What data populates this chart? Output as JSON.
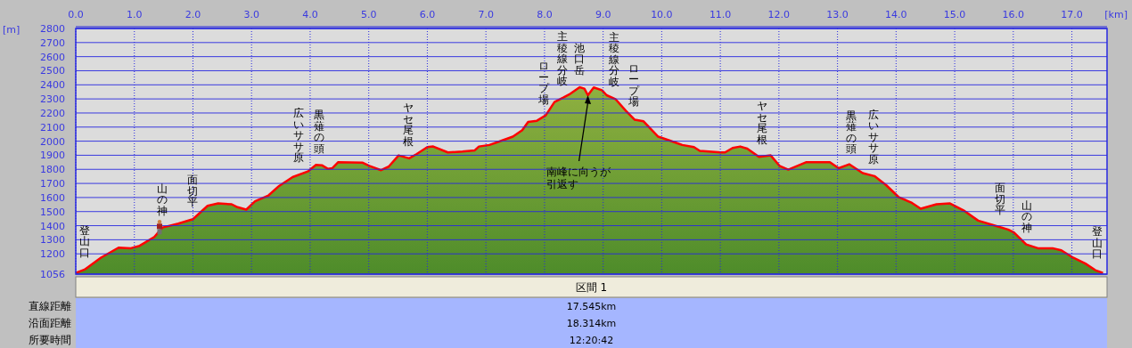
{
  "chart_data": {
    "type": "area",
    "xlabel": "[km]",
    "ylabel": "[m]",
    "xlim": [
      0,
      17.6
    ],
    "ylim": [
      1056,
      2800
    ],
    "xticks": [
      {
        "value": 0,
        "label": "0.0"
      },
      {
        "value": 1,
        "label": "1.0"
      },
      {
        "value": 2,
        "label": "2.0"
      },
      {
        "value": 3,
        "label": "3.0"
      },
      {
        "value": 4,
        "label": "4.0"
      },
      {
        "value": 5,
        "label": "5.0"
      },
      {
        "value": 6,
        "label": "6.0"
      },
      {
        "value": 7,
        "label": "7.0"
      },
      {
        "value": 8,
        "label": "8.0"
      },
      {
        "value": 9,
        "label": "9.0"
      },
      {
        "value": 10,
        "label": "10.0"
      },
      {
        "value": 11,
        "label": "11.0"
      },
      {
        "value": 12,
        "label": "12.0"
      },
      {
        "value": 13,
        "label": "13.0"
      },
      {
        "value": 14,
        "label": "14.0"
      },
      {
        "value": 15,
        "label": "15.0"
      },
      {
        "value": 16,
        "label": "16.0"
      },
      {
        "value": 17,
        "label": "17.0"
      }
    ],
    "yticks": [
      1056,
      1200,
      1300,
      1400,
      1500,
      1600,
      1700,
      1800,
      1900,
      2000,
      2100,
      2200,
      2300,
      2400,
      2500,
      2600,
      2700,
      2800
    ],
    "grid": true,
    "series": [
      {
        "color": "#ff0000",
        "x": [
          0,
          0.15,
          0.43,
          0.73,
          0.94,
          1.09,
          1.34,
          1.48,
          1.75,
          2.0,
          2.25,
          2.43,
          2.66,
          2.76,
          2.91,
          3.06,
          3.29,
          3.47,
          3.7,
          3.97,
          4.1,
          4.2,
          4.3,
          4.38,
          4.48,
          4.89,
          5.01,
          5.21,
          5.34,
          5.51,
          5.69,
          5.82,
          6.0,
          6.1,
          6.35,
          6.6,
          6.81,
          6.88,
          7.06,
          7.27,
          7.46,
          7.62,
          7.72,
          7.87,
          8.02,
          8.17,
          8.32,
          8.42,
          8.6,
          8.68,
          8.74,
          8.84,
          8.98,
          9.06,
          9.21,
          9.39,
          9.54,
          9.69,
          9.94,
          10.14,
          10.35,
          10.55,
          10.65,
          11.01,
          11.08,
          11.21,
          11.34,
          11.46,
          11.66,
          11.86,
          12.01,
          12.16,
          12.47,
          12.87,
          13.02,
          13.2,
          13.43,
          13.63,
          13.83,
          14.04,
          14.27,
          14.42,
          14.69,
          14.92,
          15.15,
          15.4,
          15.66,
          15.91,
          16.01,
          16.22,
          16.42,
          16.67,
          16.82,
          17.02,
          17.23,
          17.4,
          17.53
        ],
        "values": [
          1065,
          1088,
          1173,
          1244,
          1240,
          1257,
          1320,
          1387,
          1415,
          1446,
          1541,
          1558,
          1552,
          1531,
          1514,
          1573,
          1615,
          1682,
          1745,
          1787,
          1832,
          1829,
          1804,
          1808,
          1851,
          1848,
          1825,
          1794,
          1819,
          1899,
          1878,
          1909,
          1958,
          1962,
          1920,
          1926,
          1935,
          1962,
          1973,
          2004,
          2032,
          2078,
          2137,
          2145,
          2183,
          2278,
          2309,
          2331,
          2383,
          2373,
          2326,
          2381,
          2362,
          2326,
          2299,
          2215,
          2152,
          2141,
          2032,
          2004,
          1973,
          1958,
          1931,
          1920,
          1920,
          1952,
          1962,
          1947,
          1888,
          1899,
          1825,
          1798,
          1851,
          1851,
          1808,
          1836,
          1773,
          1752,
          1688,
          1604,
          1562,
          1520,
          1552,
          1558,
          1509,
          1436,
          1404,
          1373,
          1352,
          1267,
          1240,
          1240,
          1225,
          1173,
          1131,
          1084,
          1065
        ]
      }
    ],
    "annotations": [
      {
        "text": "登山口",
        "x": 0.15,
        "y": 1088
      },
      {
        "text": "山の神",
        "x": 1.48,
        "y": 1387
      },
      {
        "text": "面切平",
        "x": 2.0,
        "y": 1446
      },
      {
        "text": "広いササ原",
        "x": 3.8,
        "y": 1761
      },
      {
        "text": "黒薙の頭",
        "x": 4.15,
        "y": 1830
      },
      {
        "text": "ヤセ尾根",
        "x": 5.68,
        "y": 1879
      },
      {
        "text": "ロープ場",
        "x": 7.99,
        "y": 2175
      },
      {
        "text": "主稜線分岐",
        "x": 8.31,
        "y": 2307
      },
      {
        "text": "池口岳",
        "x": 8.6,
        "y": 2383
      },
      {
        "text": "主稜線分岐",
        "x": 9.19,
        "y": 2303
      },
      {
        "text": "ロープ場",
        "x": 9.52,
        "y": 2160
      },
      {
        "text": "ヤセ尾根",
        "x": 11.71,
        "y": 1891
      },
      {
        "text": "黒薙の頭",
        "x": 13.24,
        "y": 1825
      },
      {
        "text": "広いササ原",
        "x": 13.62,
        "y": 1753
      },
      {
        "text": "面切平",
        "x": 15.78,
        "y": 1389
      },
      {
        "text": "山の神",
        "x": 16.23,
        "y": 1266
      },
      {
        "text": "登山口",
        "x": 17.43,
        "y": 1080
      },
      {
        "text": "南峰に向うが引返す",
        "x": 8.74,
        "y": 2326
      },
      "区間 1",
      "直線距離",
      "17.545km",
      "沿面距離",
      "18.314km",
      "所要時間",
      "12:20:42"
    ]
  }
}
